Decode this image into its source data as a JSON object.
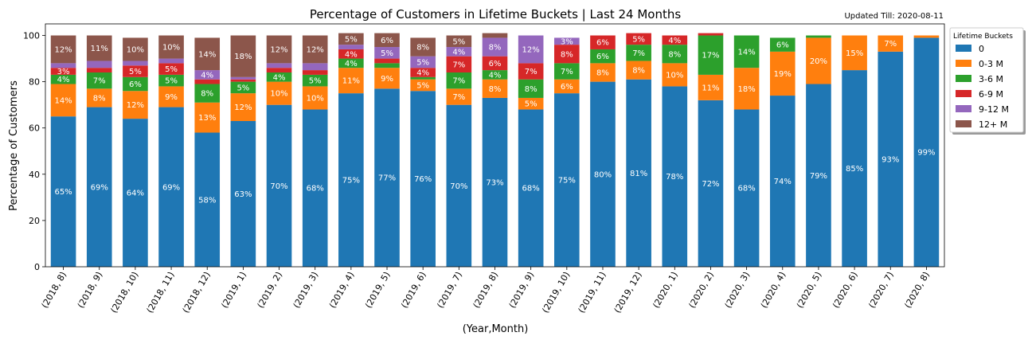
{
  "chart_data": {
    "type": "bar",
    "stacked": true,
    "title": "Percentage of Customers in Lifetime Buckets | Last 24 Months",
    "subtitle": "Updated Till: 2020-08-11",
    "xlabel": "(Year,Month)",
    "ylabel": "Percentage of Customers",
    "ylim": [
      0,
      105
    ],
    "yticks": [
      0,
      20,
      40,
      60,
      80,
      100
    ],
    "grid": false,
    "legend": {
      "title": "Lifetime Buckets",
      "placement": "right-top"
    },
    "categories": [
      "(2018, 8)",
      "(2018, 9)",
      "(2018, 10)",
      "(2018, 11)",
      "(2018, 12)",
      "(2019, 1)",
      "(2019, 2)",
      "(2019, 3)",
      "(2019, 4)",
      "(2019, 5)",
      "(2019, 6)",
      "(2019, 7)",
      "(2019, 8)",
      "(2019, 9)",
      "(2019, 10)",
      "(2019, 11)",
      "(2019, 12)",
      "(2020, 1)",
      "(2020, 2)",
      "(2020, 3)",
      "(2020, 4)",
      "(2020, 5)",
      "(2020, 6)",
      "(2020, 7)",
      "(2020, 8)"
    ],
    "series": [
      {
        "name": "0",
        "color": "#1f77b4",
        "values": [
          65,
          69,
          64,
          69,
          58,
          63,
          70,
          68,
          75,
          77,
          76,
          70,
          73,
          68,
          75,
          80,
          81,
          78,
          72,
          68,
          74,
          79,
          85,
          93,
          99
        ]
      },
      {
        "name": "0-3 M",
        "color": "#ff7f0e",
        "values": [
          14,
          8,
          12,
          9,
          13,
          12,
          10,
          10,
          11,
          9,
          5,
          7,
          8,
          5,
          6,
          8,
          8,
          10,
          11,
          18,
          19,
          20,
          15,
          7,
          1
        ]
      },
      {
        "name": "3-6 M",
        "color": "#2ca02c",
        "values": [
          4,
          7,
          6,
          5,
          8,
          5,
          4,
          5,
          4,
          2,
          1,
          7,
          4,
          8,
          7,
          6,
          7,
          8,
          17,
          14,
          6,
          1,
          0,
          0,
          0
        ]
      },
      {
        "name": "6-9 M",
        "color": "#d62728",
        "values": [
          3,
          2,
          5,
          5,
          2,
          1,
          2,
          2,
          4,
          2,
          4,
          7,
          6,
          7,
          8,
          6,
          5,
          4,
          1,
          0,
          0,
          0,
          0,
          0,
          0
        ]
      },
      {
        "name": "9-12 M",
        "color": "#9467bd",
        "values": [
          2,
          3,
          2,
          2,
          4,
          1,
          2,
          3,
          2,
          5,
          5,
          4,
          8,
          12,
          3,
          0,
          0,
          0,
          0,
          0,
          0,
          0,
          0,
          0,
          0
        ]
      },
      {
        "name": "12+ M",
        "color": "#8c564b",
        "values": [
          12,
          11,
          10,
          10,
          14,
          18,
          12,
          12,
          5,
          6,
          8,
          5,
          2,
          0,
          0,
          0,
          0,
          0,
          0,
          0,
          0,
          0,
          0,
          0,
          0
        ]
      }
    ],
    "data_labels": [
      [
        "65%",
        "69%",
        "64%",
        "69%",
        "58%",
        "63%",
        "70%",
        "68%",
        "75%",
        "77%",
        "76%",
        "70%",
        "73%",
        "68%",
        "75%",
        "80%",
        "81%",
        "78%",
        "72%",
        "68%",
        "74%",
        "79%",
        "85%",
        "93%",
        "99%"
      ],
      [
        "14%",
        "8%",
        "12%",
        "9%",
        "13%",
        "12%",
        "10%",
        "10%",
        "11%",
        "9%",
        "5%",
        "7%",
        "8%",
        "5%",
        "6%",
        "8%",
        "8%",
        "10%",
        "11%",
        "18%",
        "19%",
        "20%",
        "15%",
        "7%",
        ""
      ],
      [
        "4%",
        "7%",
        "6%",
        "5%",
        "8%",
        "5%",
        "4%",
        "5%",
        "4%",
        "",
        "",
        "7%",
        "4%",
        "8%",
        "7%",
        "6%",
        "7%",
        "8%",
        "17%",
        "14%",
        "6%",
        "",
        "",
        "",
        ""
      ],
      [
        "3%",
        "",
        "5%",
        "5%",
        "",
        "",
        "",
        "",
        "4%",
        "",
        "4%",
        "7%",
        "6%",
        "7%",
        "8%",
        "6%",
        "5%",
        "4%",
        "",
        "",
        "",
        "",
        "",
        "",
        ""
      ],
      [
        "",
        "",
        "",
        "",
        "4%",
        "",
        "",
        "",
        "",
        "5%",
        "5%",
        "4%",
        "8%",
        "12%",
        "3%",
        "",
        "",
        "",
        "",
        "",
        "",
        "",
        "",
        "",
        ""
      ],
      [
        "12%",
        "11%",
        "10%",
        "10%",
        "14%",
        "18%",
        "12%",
        "12%",
        "5%",
        "6%",
        "8%",
        "5%",
        "",
        "",
        "",
        "",
        "",
        "",
        "",
        "",
        "",
        "",
        "",
        "",
        ""
      ]
    ]
  }
}
